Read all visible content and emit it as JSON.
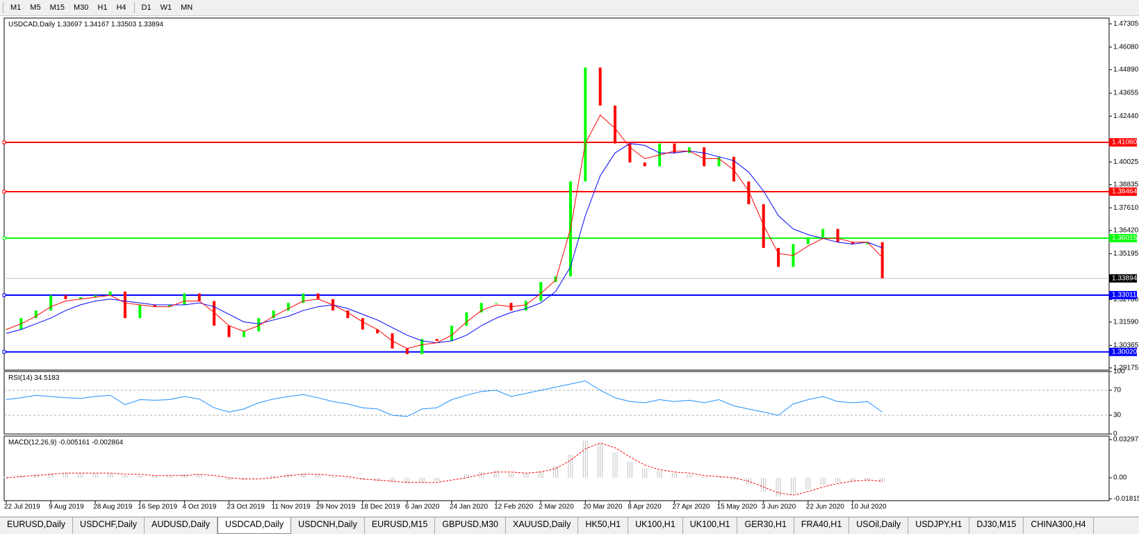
{
  "toolbar": {
    "timeframes": [
      "M1",
      "M5",
      "M15",
      "M30",
      "H1",
      "H4",
      "D1",
      "W1",
      "MN"
    ]
  },
  "chart_data": [
    {
      "type": "candlestick",
      "title": "USDCAD,Daily",
      "legend_values": [
        1.33697,
        1.34167,
        1.33503,
        1.33894
      ],
      "categories": [
        "22 Jul 2019",
        null,
        null,
        "9 Aug 2019",
        null,
        null,
        "28 Aug 2019",
        null,
        null,
        "16 Sep 2019",
        null,
        null,
        "4 Oct 2019",
        null,
        null,
        "23 Oct 2019",
        null,
        null,
        "11 Nov 2019",
        null,
        null,
        "29 Nov 2019",
        null,
        null,
        "18 Dec 2019",
        null,
        null,
        "6 Jan 2020",
        null,
        null,
        "24 Jan 2020",
        null,
        null,
        "12 Feb 2020",
        null,
        null,
        "2 Mar 2020",
        null,
        null,
        "20 Mar 2020",
        null,
        null,
        "8 Apr 2020",
        null,
        null,
        "27 Apr 2020",
        null,
        null,
        "15 May 2020",
        null,
        null,
        "3 Jun 2020",
        null,
        null,
        "22 Jun 2020",
        null,
        null,
        "10 Jul 2020",
        null,
        null
      ],
      "values": [
        1.312,
        1.318,
        1.322,
        1.33,
        1.328,
        1.329,
        1.33,
        1.332,
        1.318,
        1.325,
        1.324,
        1.325,
        1.331,
        1.327,
        1.314,
        1.308,
        1.311,
        1.318,
        1.322,
        1.326,
        1.331,
        1.328,
        1.322,
        1.318,
        1.312,
        1.31,
        1.302,
        1.299,
        1.307,
        1.306,
        1.314,
        1.321,
        1.326,
        1.326,
        1.322,
        1.327,
        1.337,
        1.34,
        1.39,
        1.45,
        1.43,
        1.41,
        1.4,
        1.398,
        1.41,
        1.405,
        1.408,
        1.398,
        1.403,
        1.39,
        1.378,
        1.355,
        1.345,
        1.357,
        1.36,
        1.365,
        1.358,
        1.357,
        1.358,
        1.339
      ],
      "up_color": "#00ff00",
      "down_color": "#ff0000",
      "ma_fast": {
        "color": "#ff0000",
        "values": [
          1.312,
          1.315,
          1.319,
          1.324,
          1.327,
          1.328,
          1.329,
          1.33,
          1.326,
          1.325,
          1.324,
          1.324,
          1.327,
          1.327,
          1.321,
          1.314,
          1.311,
          1.314,
          1.319,
          1.323,
          1.327,
          1.328,
          1.325,
          1.321,
          1.316,
          1.312,
          1.306,
          1.302,
          1.304,
          1.305,
          1.309,
          1.316,
          1.322,
          1.325,
          1.324,
          1.325,
          1.331,
          1.338,
          1.365,
          1.41,
          1.425,
          1.418,
          1.408,
          1.402,
          1.404,
          1.406,
          1.406,
          1.402,
          1.402,
          1.396,
          1.385,
          1.367,
          1.352,
          1.351,
          1.356,
          1.36,
          1.36,
          1.358,
          1.358,
          1.35
        ]
      },
      "ma_slow": {
        "color": "#0000ff",
        "values": [
          1.31,
          1.312,
          1.315,
          1.318,
          1.322,
          1.325,
          1.327,
          1.328,
          1.327,
          1.326,
          1.325,
          1.325,
          1.325,
          1.326,
          1.324,
          1.32,
          1.316,
          1.315,
          1.317,
          1.319,
          1.322,
          1.324,
          1.325,
          1.323,
          1.32,
          1.317,
          1.313,
          1.309,
          1.306,
          1.305,
          1.306,
          1.309,
          1.314,
          1.318,
          1.321,
          1.323,
          1.326,
          1.332,
          1.345,
          1.372,
          1.393,
          1.405,
          1.41,
          1.409,
          1.405,
          1.405,
          1.406,
          1.405,
          1.403,
          1.401,
          1.395,
          1.385,
          1.372,
          1.365,
          1.362,
          1.36,
          1.358,
          1.357,
          1.358,
          1.355
        ]
      },
      "ylim": [
        1.2906,
        1.4761
      ],
      "yticks": [
        1.47305,
        {
          "value": 1.4608,
          "label": "1.46080"
        },
        {
          "value": 1.4489,
          "label": "1.44890"
        },
        1.43655,
        {
          "value": 1.4244,
          "label": "1.42440"
        },
        1.40025,
        {
          "value": 1.38835,
          "label": "1.38835"
        },
        {
          "value": 1.3761,
          "label": "1.37610"
        },
        {
          "value": 1.3642,
          "label": "1.36420"
        },
        1.35195,
        {
          "value": 1.3278,
          "label": "1.32780"
        },
        {
          "value": 1.3159,
          "label": "1.31590"
        },
        1.30365,
        1.29175
      ],
      "levels": [
        {
          "value": 1.4106,
          "label": "1.41060",
          "color": "#ff0000"
        },
        1.38464,
        {
          "value": 1.36015,
          "label": "1.36015",
          "color": "#00ff00"
        },
        1.33011,
        {
          "value": 1.3002,
          "label": "1.30020",
          "color": "#0000ff"
        }
      ],
      "level_colors": [
        "#ff0000",
        "#ff0000",
        "#00ff00",
        "#0000ff",
        "#0000ff"
      ],
      "current_price": 1.33894
    },
    {
      "type": "line",
      "title": "RSI(14)",
      "legend_values": [
        34.5183
      ],
      "color": "#1e90ff",
      "values": [
        55,
        58,
        62,
        60,
        58,
        57,
        60,
        62,
        47,
        55,
        54,
        55,
        60,
        56,
        42,
        35,
        40,
        50,
        56,
        60,
        63,
        58,
        52,
        48,
        42,
        40,
        30,
        28,
        40,
        42,
        55,
        62,
        68,
        70,
        60,
        65,
        70,
        75,
        80,
        85,
        70,
        58,
        52,
        50,
        55,
        52,
        54,
        50,
        55,
        45,
        40,
        35,
        30,
        48,
        55,
        60,
        52,
        50,
        52,
        35
      ],
      "ylim": [
        0,
        100
      ],
      "yticks": [
        0,
        30,
        70,
        100
      ],
      "dashed_ticks": [
        30,
        70
      ]
    },
    {
      "type": "macd",
      "title": "MACD(12,26,9)",
      "legend_values": [
        -0.005161,
        -0.002864
      ],
      "color": "#c0c0c0",
      "signal_color": "#ff0000",
      "values": [
        0.001,
        0.002,
        0.003,
        0.004,
        0.004,
        0.004,
        0.004,
        0.004,
        0.002,
        0.002,
        0.002,
        0.002,
        0.003,
        0.003,
        0.0,
        -0.002,
        -0.002,
        0.0,
        0.002,
        0.003,
        0.004,
        0.003,
        0.001,
        -0.001,
        -0.002,
        -0.003,
        -0.004,
        -0.005,
        -0.004,
        -0.003,
        0.0,
        0.003,
        0.005,
        0.006,
        0.004,
        0.004,
        0.006,
        0.01,
        0.02,
        0.032,
        0.03,
        0.022,
        0.014,
        0.008,
        0.006,
        0.004,
        0.003,
        0.001,
        0.001,
        -0.002,
        -0.006,
        -0.012,
        -0.016,
        -0.014,
        -0.01,
        -0.006,
        -0.004,
        -0.003,
        -0.002,
        -0.004
      ],
      "signal": [
        0.0,
        0.001,
        0.002,
        0.003,
        0.004,
        0.004,
        0.004,
        0.004,
        0.003,
        0.003,
        0.002,
        0.002,
        0.002,
        0.003,
        0.002,
        0.0,
        -0.001,
        -0.001,
        0.0,
        0.002,
        0.003,
        0.003,
        0.002,
        0.001,
        -0.001,
        -0.002,
        -0.003,
        -0.004,
        -0.004,
        -0.004,
        -0.002,
        0.0,
        0.003,
        0.005,
        0.005,
        0.004,
        0.005,
        0.008,
        0.015,
        0.025,
        0.03,
        0.026,
        0.018,
        0.011,
        0.007,
        0.005,
        0.004,
        0.002,
        0.001,
        0.0,
        -0.003,
        -0.008,
        -0.013,
        -0.015,
        -0.012,
        -0.008,
        -0.005,
        -0.003,
        -0.002,
        -0.003
      ],
      "ylim": [
        -0.0198,
        0.036
      ],
      "yticks": [
        0.032972,
        {
          "value": 0,
          "label": "0.00"
        },
        -0.01815
      ]
    }
  ],
  "tabs": {
    "items": [
      "EURUSD,Daily",
      "USDCHF,Daily",
      "AUDUSD,Daily",
      "USDCAD,Daily",
      "USDCNH,Daily",
      "EURUSD,M15",
      "GBPUSD,M30",
      "XAUUSD,Daily",
      "HK50,H1",
      "UK100,H1",
      "UK100,H1",
      "GER30,H1",
      "FRA40,H1",
      "USOil,Daily",
      "USDJPY,H1",
      "DJ30,M15",
      "CHINA300,H4"
    ],
    "active": 3
  }
}
